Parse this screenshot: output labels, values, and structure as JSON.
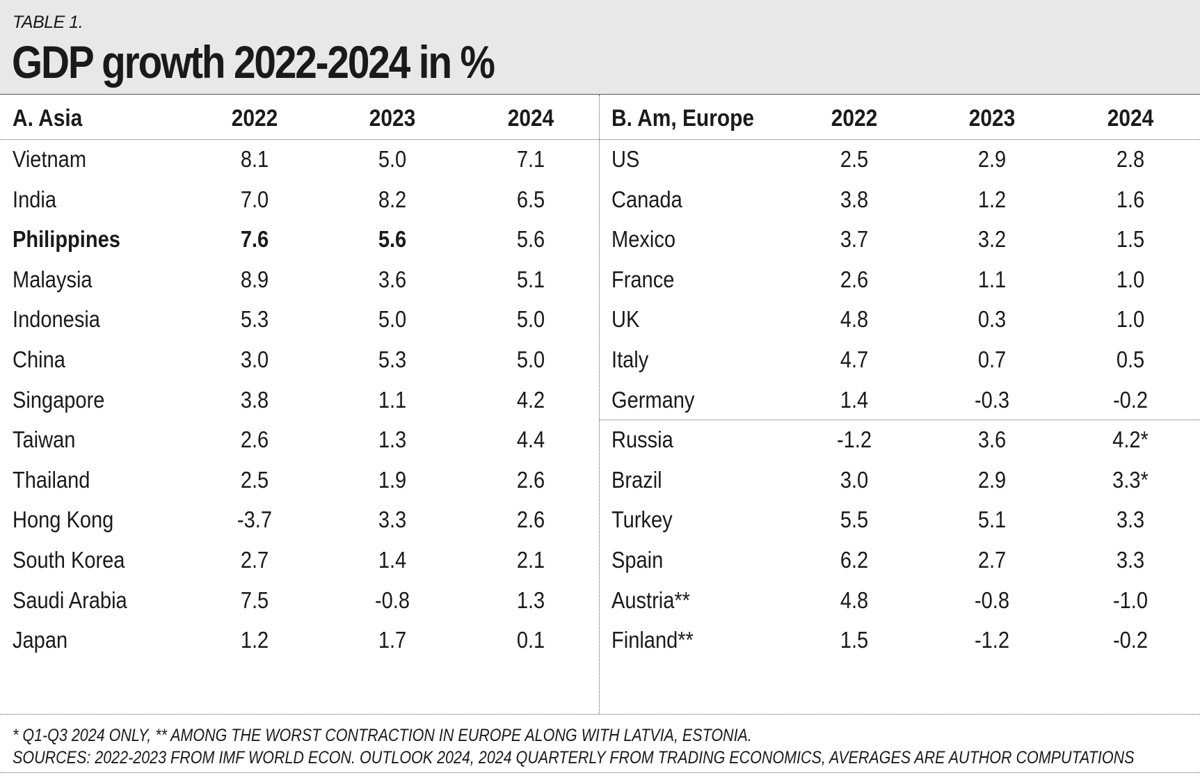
{
  "header": {
    "label": "TABLE 1.",
    "title": "GDP growth 2022-2024 in %"
  },
  "chart_data": {
    "type": "table",
    "title": "GDP growth 2022-2024 in %",
    "years": [
      "2022",
      "2023",
      "2024"
    ],
    "panels": [
      {
        "heading": "A. Asia",
        "columns": [
          "2022",
          "2023",
          "2024"
        ],
        "rows": [
          {
            "name": "Vietnam",
            "values": [
              "8.1",
              "5.0",
              "7.1"
            ]
          },
          {
            "name": "India",
            "values": [
              "7.0",
              "8.2",
              "6.5"
            ]
          },
          {
            "name": "Philippines",
            "values": [
              "7.6",
              "5.6",
              "5.6"
            ],
            "bold": true
          },
          {
            "name": "Malaysia",
            "values": [
              "8.9",
              "3.6",
              "5.1"
            ]
          },
          {
            "name": "Indonesia",
            "values": [
              "5.3",
              "5.0",
              "5.0"
            ]
          },
          {
            "name": "China",
            "values": [
              "3.0",
              "5.3",
              "5.0"
            ]
          },
          {
            "name": "Singapore",
            "values": [
              "3.8",
              "1.1",
              "4.2"
            ]
          },
          {
            "name": "Taiwan",
            "values": [
              "2.6",
              "1.3",
              "4.4"
            ]
          },
          {
            "name": "Thailand",
            "values": [
              "2.5",
              "1.9",
              "2.6"
            ]
          },
          {
            "name": "Hong Kong",
            "values": [
              "-3.7",
              "3.3",
              "2.6"
            ]
          },
          {
            "name": "South Korea",
            "values": [
              "2.7",
              "1.4",
              "2.1"
            ]
          },
          {
            "name": "Saudi Arabia",
            "values": [
              "7.5",
              "-0.8",
              "1.3"
            ]
          },
          {
            "name": "Japan",
            "values": [
              "1.2",
              "1.7",
              "0.1"
            ]
          }
        ]
      },
      {
        "heading": "B. Am, Europe",
        "columns": [
          "2022",
          "2023",
          "2024"
        ],
        "separator_after_row": 7,
        "rows": [
          {
            "name": "US",
            "values": [
              "2.5",
              "2.9",
              "2.8"
            ]
          },
          {
            "name": "Canada",
            "values": [
              "3.8",
              "1.2",
              "1.6"
            ]
          },
          {
            "name": "Mexico",
            "values": [
              "3.7",
              "3.2",
              "1.5"
            ]
          },
          {
            "name": "France",
            "values": [
              "2.6",
              "1.1",
              "1.0"
            ]
          },
          {
            "name": "UK",
            "values": [
              "4.8",
              "0.3",
              "1.0"
            ]
          },
          {
            "name": "Italy",
            "values": [
              "4.7",
              "0.7",
              "0.5"
            ]
          },
          {
            "name": "Germany",
            "values": [
              "1.4",
              "-0.3",
              "-0.2"
            ]
          },
          {
            "name": "Russia",
            "values": [
              "-1.2",
              "3.6",
              "4.2*"
            ]
          },
          {
            "name": "Brazil",
            "values": [
              "3.0",
              "2.9",
              "3.3*"
            ]
          },
          {
            "name": "Turkey",
            "values": [
              "5.5",
              "5.1",
              "3.3"
            ]
          },
          {
            "name": "Spain",
            "values": [
              "6.2",
              "2.7",
              "3.3"
            ]
          },
          {
            "name": "Austria**",
            "values": [
              "4.8",
              "-0.8",
              "-1.0"
            ]
          },
          {
            "name": "Finland**",
            "values": [
              "1.5",
              "-1.2",
              "-0.2"
            ]
          }
        ]
      }
    ]
  },
  "notes": [
    "* Q1-Q3 2024 ONLY, ** AMONG THE WORST CONTRACTION IN EUROPE ALONG WITH LATVIA, ESTONIA.",
    "SOURCES: 2022-2023 FROM IMF WORLD ECON. OUTLOOK 2024, 2024 QUARTERLY FROM TRADING ECONOMICS, AVERAGES ARE AUTHOR COMPUTATIONS"
  ]
}
